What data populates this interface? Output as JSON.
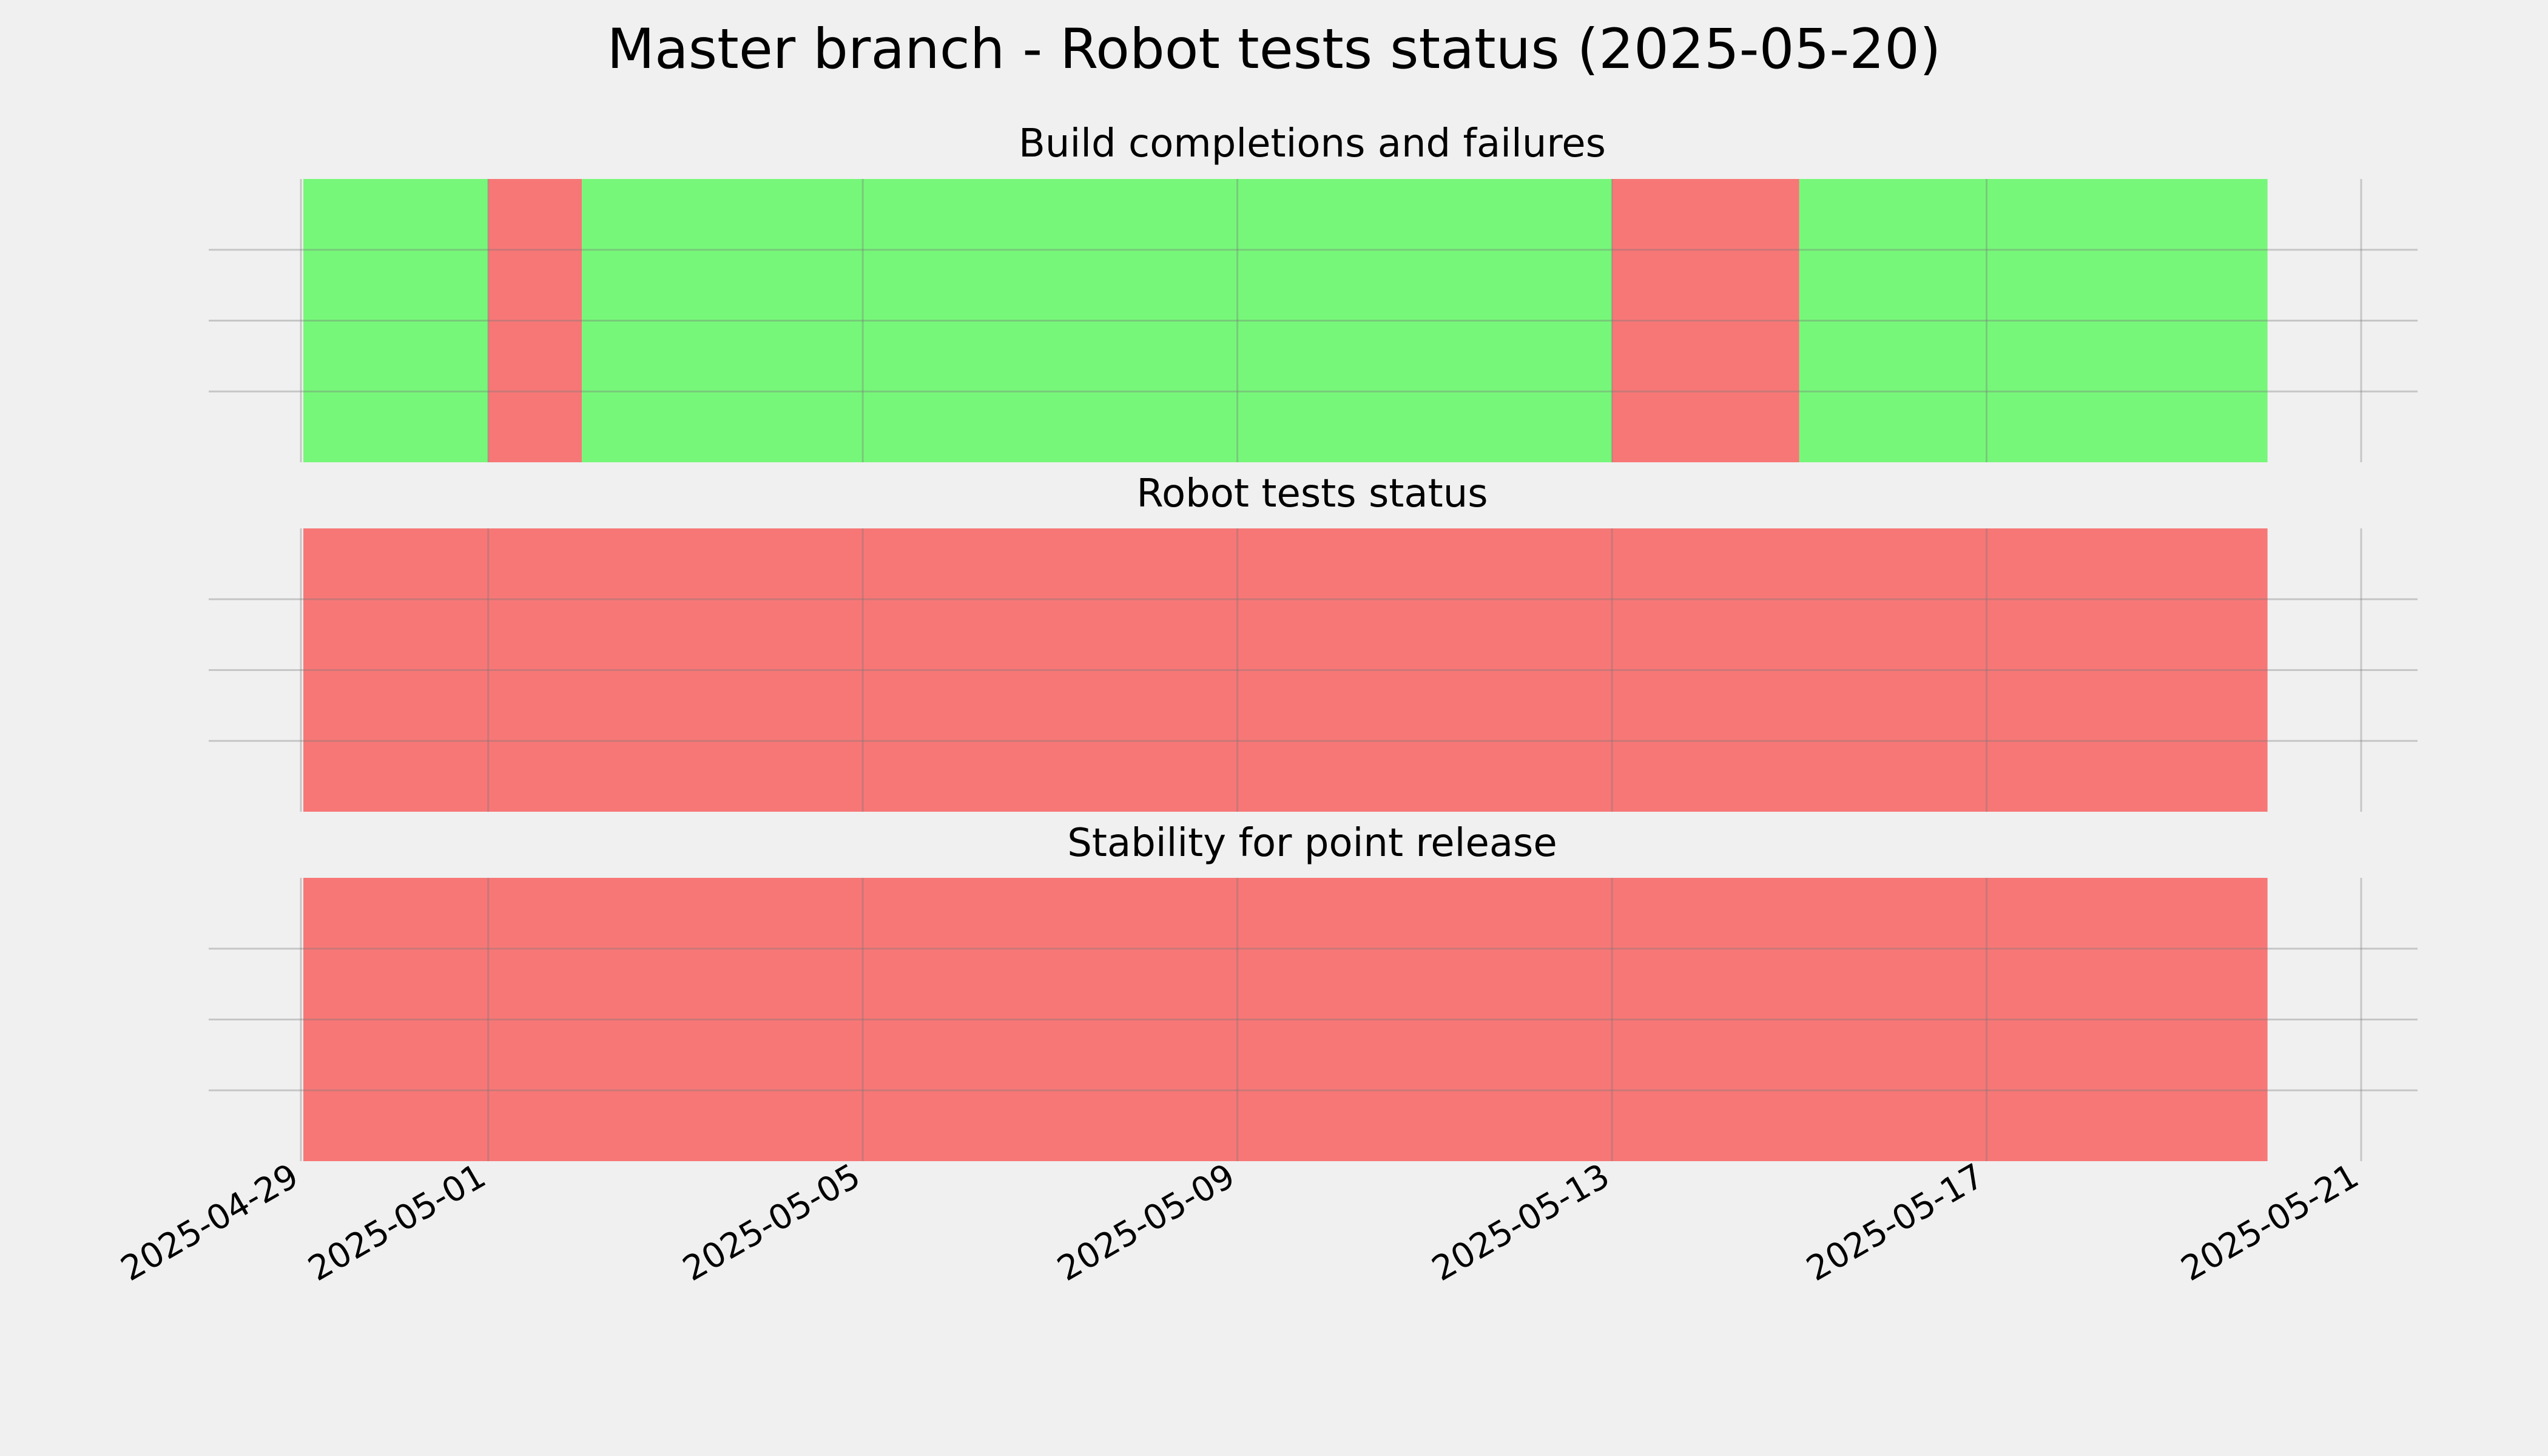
{
  "chart_data": {
    "type": "bar",
    "title": "Master branch - Robot tests status (2025-05-20)",
    "x_axis": {
      "type": "date",
      "range": [
        "2025-04-29",
        "2025-05-21"
      ],
      "ticks": [
        "2025-04-29",
        "2025-05-01",
        "2025-05-05",
        "2025-05-09",
        "2025-05-13",
        "2025-05-17",
        "2025-05-21"
      ]
    },
    "y_axis": {
      "tick_labels": []
    },
    "grid": true,
    "colors": {
      "success": "#77f77a",
      "failure": "#f77777"
    },
    "panels": [
      {
        "title": "Build completions and failures",
        "segments": [
          {
            "start": "2025-04-29",
            "end": "2025-05-01",
            "status": "success"
          },
          {
            "start": "2025-05-01",
            "end": "2025-05-02",
            "status": "failure"
          },
          {
            "start": "2025-05-02",
            "end": "2025-05-13",
            "status": "success"
          },
          {
            "start": "2025-05-13",
            "end": "2025-05-15",
            "status": "failure"
          },
          {
            "start": "2025-05-15",
            "end": "2025-05-20",
            "status": "success"
          }
        ]
      },
      {
        "title": "Robot tests status",
        "segments": [
          {
            "start": "2025-04-29",
            "end": "2025-05-20",
            "status": "failure"
          }
        ]
      },
      {
        "title": "Stability for point release",
        "segments": [
          {
            "start": "2025-04-29",
            "end": "2025-05-20",
            "status": "failure"
          }
        ]
      }
    ]
  }
}
